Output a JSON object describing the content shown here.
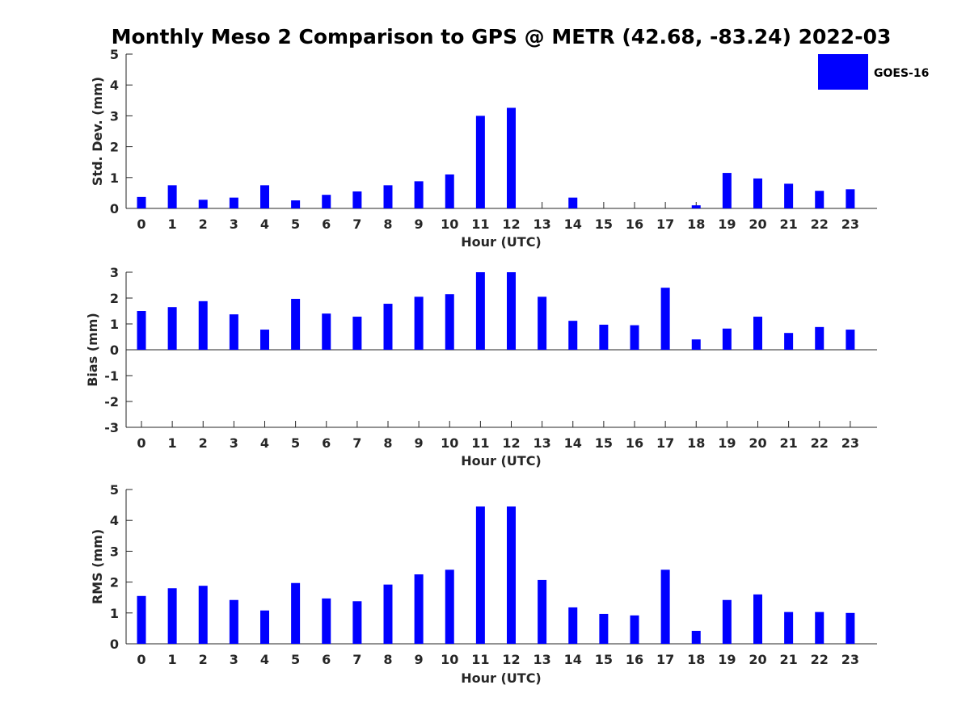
{
  "chart_data": {
    "title": "Monthly Meso 2 Comparison to GPS @ METR (42.68, -83.24) 2022-03",
    "legend": {
      "label": "GOES-16",
      "color": "#0000ff",
      "position": "top-right"
    },
    "colors": {
      "bar": "#0000ff",
      "axis": "#262626"
    },
    "panels": [
      {
        "type": "bar",
        "ylabel": "Std. Dev. (mm)",
        "xlabel": "Hour (UTC)",
        "ylim": [
          0,
          5
        ],
        "yticks": [
          "0",
          "1",
          "2",
          "3",
          "4",
          "5"
        ],
        "categories": [
          "0",
          "1",
          "2",
          "3",
          "4",
          "5",
          "6",
          "7",
          "8",
          "9",
          "10",
          "11",
          "12",
          "13",
          "14",
          "15",
          "16",
          "17",
          "18",
          "19",
          "20",
          "21",
          "22",
          "23"
        ],
        "series": [
          {
            "name": "GOES-16",
            "values": [
              0.37,
              0.75,
              0.28,
              0.35,
              0.75,
              0.26,
              0.44,
              0.55,
              0.75,
              0.88,
              1.1,
              3.0,
              3.26,
              0,
              0.35,
              0,
              0,
              0,
              0.1,
              1.15,
              0.97,
              0.8,
              0.57,
              0.62
            ]
          }
        ]
      },
      {
        "type": "bar",
        "ylabel": "Bias (mm)",
        "xlabel": "Hour (UTC)",
        "ylim": [
          -3,
          3
        ],
        "yticks": [
          "-3",
          "-2",
          "-1",
          "0",
          "1",
          "2",
          "3"
        ],
        "categories": [
          "0",
          "1",
          "2",
          "3",
          "4",
          "5",
          "6",
          "7",
          "8",
          "9",
          "10",
          "11",
          "12",
          "13",
          "14",
          "15",
          "16",
          "17",
          "18",
          "19",
          "20",
          "21",
          "22",
          "23"
        ],
        "series": [
          {
            "name": "GOES-16",
            "values": [
              1.5,
              1.65,
              1.88,
              1.37,
              0.78,
              1.97,
              1.4,
              1.28,
              1.78,
              2.05,
              2.15,
              3.0,
              3.0,
              2.05,
              1.12,
              0.97,
              0.95,
              2.4,
              0.4,
              0.82,
              1.28,
              0.65,
              0.88,
              0.78
            ]
          }
        ]
      },
      {
        "type": "bar",
        "ylabel": "RMS (mm)",
        "xlabel": "Hour (UTC)",
        "ylim": [
          0,
          5
        ],
        "yticks": [
          "0",
          "1",
          "2",
          "3",
          "4",
          "5"
        ],
        "categories": [
          "0",
          "1",
          "2",
          "3",
          "4",
          "5",
          "6",
          "7",
          "8",
          "9",
          "10",
          "11",
          "12",
          "13",
          "14",
          "15",
          "16",
          "17",
          "18",
          "19",
          "20",
          "21",
          "22",
          "23"
        ],
        "series": [
          {
            "name": "GOES-16",
            "values": [
              1.55,
              1.8,
              1.88,
              1.42,
              1.08,
              1.97,
              1.47,
              1.38,
              1.92,
              2.25,
              2.4,
              4.45,
              4.45,
              2.07,
              1.18,
              0.97,
              0.92,
              2.4,
              0.42,
              1.42,
              1.6,
              1.03,
              1.03,
              1.0
            ]
          }
        ]
      }
    ]
  }
}
